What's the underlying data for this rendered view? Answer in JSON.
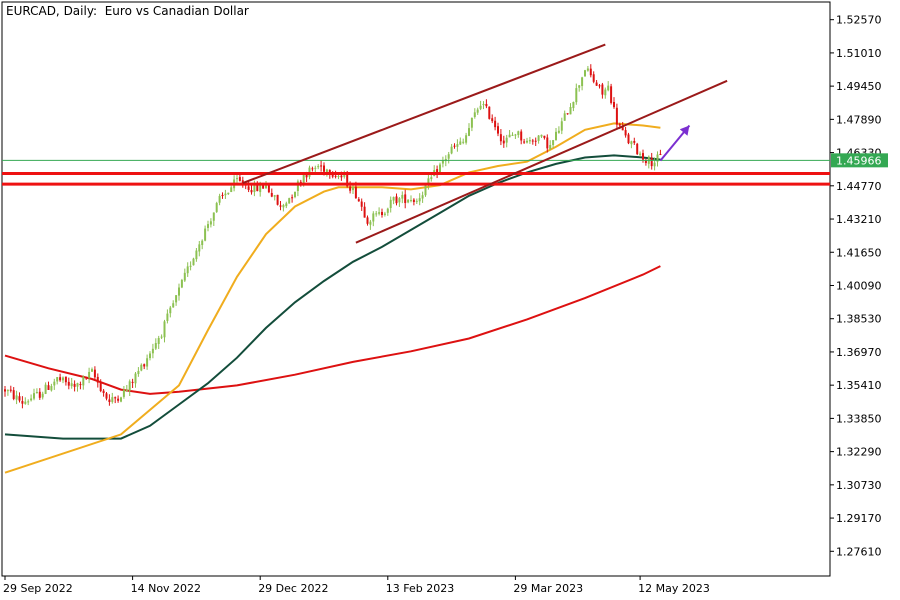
{
  "header": {
    "title": "EURCAD, Daily:  Euro vs Canadian Dollar"
  },
  "chart_data": {
    "type": "candlestick",
    "title": "EURCAD, Daily:  Euro vs Canadian Dollar",
    "x_ticks": [
      "29 Sep 2022",
      "14 Nov 2022",
      "29 Dec 2022",
      "13 Feb 2023",
      "29 Mar 2023",
      "12 May 2023"
    ],
    "y_ticks": [
      "1.52570",
      "1.51010",
      "1.49450",
      "1.47890",
      "1.46330",
      "1.44770",
      "1.43210",
      "1.41650",
      "1.40090",
      "1.38530",
      "1.36970",
      "1.35410",
      "1.33850",
      "1.32290",
      "1.30730",
      "1.29170",
      "1.27610"
    ],
    "ylim": [
      1.2645,
      1.534
    ],
    "current_price": "1.45966",
    "colors": {
      "bull": "#8cc152",
      "bear": "#dd1111",
      "ma_fast": "#f0ad1e",
      "ma_mid": "#134d3b",
      "ma_slow": "#dd1111",
      "channel": "#9b1a1a",
      "support": "#ee1111",
      "price_line": "#34a853",
      "arrow": "#7b2fd0"
    },
    "anchors": [
      [
        0,
        1.352
      ],
      [
        6,
        1.346
      ],
      [
        12,
        1.35
      ],
      [
        18,
        1.357
      ],
      [
        24,
        1.353
      ],
      [
        30,
        1.36
      ],
      [
        36,
        1.346
      ],
      [
        42,
        1.352
      ],
      [
        48,
        1.365
      ],
      [
        54,
        1.379
      ],
      [
        58,
        1.392
      ],
      [
        62,
        1.405
      ],
      [
        66,
        1.418
      ],
      [
        70,
        1.43
      ],
      [
        74,
        1.441
      ],
      [
        80,
        1.45
      ],
      [
        86,
        1.446
      ],
      [
        90,
        1.448
      ],
      [
        95,
        1.437
      ],
      [
        99,
        1.444
      ],
      [
        103,
        1.453
      ],
      [
        108,
        1.457
      ],
      [
        112,
        1.455
      ],
      [
        117,
        1.451
      ],
      [
        121,
        1.444
      ],
      [
        125,
        1.432
      ],
      [
        129,
        1.434
      ],
      [
        134,
        1.441
      ],
      [
        139,
        1.442
      ],
      [
        142,
        1.441
      ],
      [
        148,
        1.453
      ],
      [
        154,
        1.465
      ],
      [
        158,
        1.468
      ],
      [
        161,
        1.478
      ],
      [
        164,
        1.487
      ],
      [
        168,
        1.479
      ],
      [
        172,
        1.468
      ],
      [
        176,
        1.473
      ],
      [
        180,
        1.468
      ],
      [
        184,
        1.471
      ],
      [
        188,
        1.466
      ],
      [
        192,
        1.477
      ],
      [
        196,
        1.489
      ],
      [
        200,
        1.503
      ],
      [
        203,
        1.497
      ],
      [
        206,
        1.491
      ],
      [
        208,
        1.494
      ],
      [
        211,
        1.478
      ],
      [
        214,
        1.47
      ],
      [
        217,
        1.466
      ],
      [
        220,
        1.461
      ],
      [
        223,
        1.459
      ],
      [
        226,
        1.461
      ]
    ],
    "ma_fast": [
      [
        0,
        1.313
      ],
      [
        40,
        1.331
      ],
      [
        60,
        1.354
      ],
      [
        70,
        1.38
      ],
      [
        80,
        1.405
      ],
      [
        90,
        1.425
      ],
      [
        100,
        1.438
      ],
      [
        110,
        1.445
      ],
      [
        115,
        1.447
      ],
      [
        130,
        1.447
      ],
      [
        140,
        1.446
      ],
      [
        150,
        1.448
      ],
      [
        160,
        1.454
      ],
      [
        170,
        1.457
      ],
      [
        180,
        1.459
      ],
      [
        190,
        1.466
      ],
      [
        200,
        1.474
      ],
      [
        210,
        1.477
      ],
      [
        220,
        1.476
      ],
      [
        226,
        1.475
      ]
    ],
    "ma_mid": [
      [
        0,
        1.331
      ],
      [
        20,
        1.329
      ],
      [
        40,
        1.329
      ],
      [
        50,
        1.335
      ],
      [
        60,
        1.345
      ],
      [
        70,
        1.355
      ],
      [
        80,
        1.367
      ],
      [
        90,
        1.381
      ],
      [
        100,
        1.393
      ],
      [
        110,
        1.403
      ],
      [
        120,
        1.412
      ],
      [
        130,
        1.419
      ],
      [
        140,
        1.427
      ],
      [
        150,
        1.435
      ],
      [
        160,
        1.443
      ],
      [
        170,
        1.449
      ],
      [
        180,
        1.454
      ],
      [
        190,
        1.458
      ],
      [
        200,
        1.461
      ],
      [
        210,
        1.462
      ],
      [
        220,
        1.461
      ],
      [
        226,
        1.46
      ]
    ],
    "ma_slow": [
      [
        0,
        1.368
      ],
      [
        15,
        1.362
      ],
      [
        30,
        1.357
      ],
      [
        40,
        1.352
      ],
      [
        50,
        1.35
      ],
      [
        60,
        1.351
      ],
      [
        80,
        1.354
      ],
      [
        100,
        1.359
      ],
      [
        120,
        1.365
      ],
      [
        140,
        1.37
      ],
      [
        160,
        1.376
      ],
      [
        180,
        1.385
      ],
      [
        200,
        1.395
      ],
      [
        220,
        1.406
      ],
      [
        226,
        1.41
      ]
    ],
    "channel_upper": [
      [
        82,
        1.449
      ],
      [
        207,
        1.514
      ]
    ],
    "channel_lower": [
      [
        121,
        1.421
      ],
      [
        249,
        1.497
      ]
    ],
    "support_levels": [
      1.4535,
      1.4485
    ],
    "price_line": 1.45966,
    "arrow": [
      [
        226,
        1.4595
      ],
      [
        236,
        1.476
      ]
    ]
  }
}
